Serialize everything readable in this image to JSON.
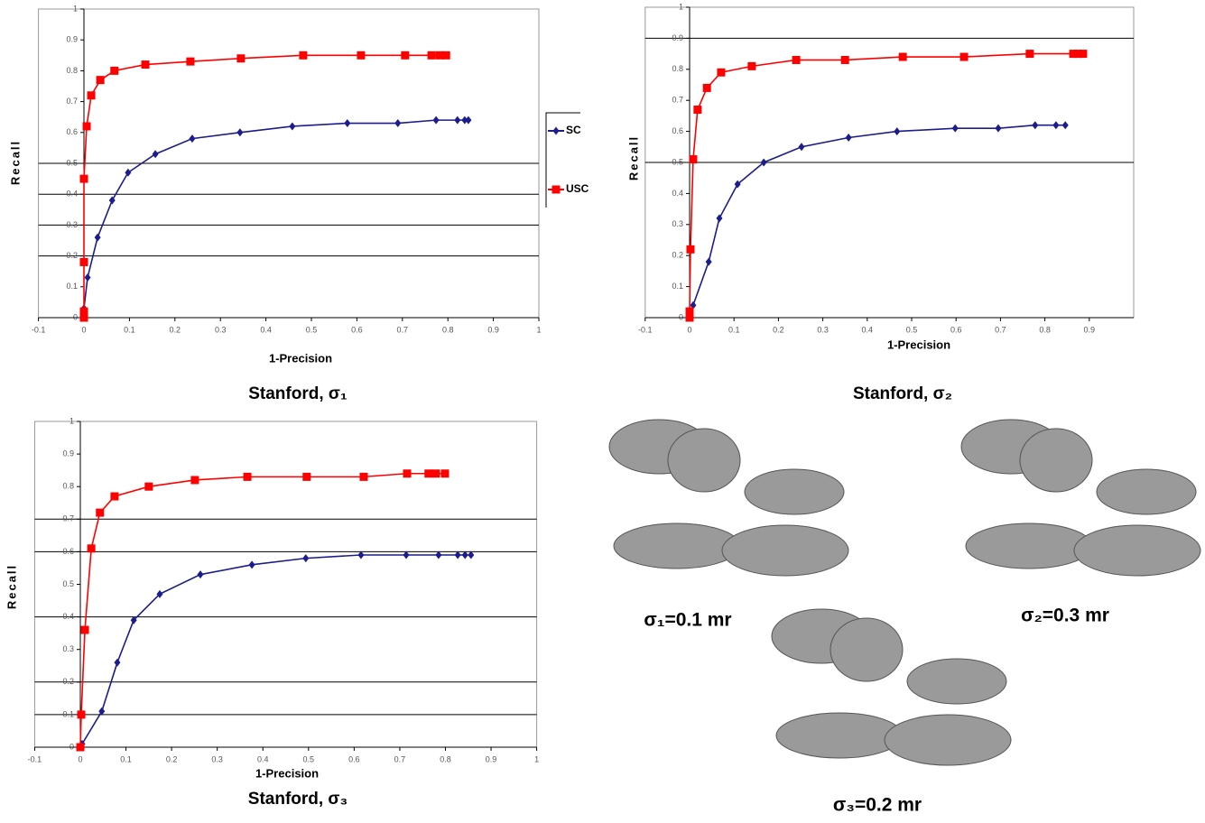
{
  "charts": [
    {
      "chart_data": {
        "type": "line",
        "title": "Stanford, σ₁",
        "x_label": "1-Precision",
        "y_label": "Recall",
        "xlim": [
          -0.1,
          1
        ],
        "ylim": [
          0,
          1
        ],
        "xticks": [
          -0.1,
          0,
          0.1,
          0.2,
          0.3,
          0.4,
          0.5,
          0.6,
          0.7,
          0.8,
          0.9,
          1
        ],
        "yticks": [
          0,
          0.1,
          0.2,
          0.3,
          0.4,
          0.5,
          0.6,
          0.7,
          0.8,
          0.9,
          1
        ],
        "hlines": [
          0.2,
          0.3,
          0.4,
          0.5
        ],
        "legend": "right",
        "series": [
          {
            "name": "SC",
            "color": "#1c1c8c",
            "marker": "diamond",
            "x": [
              0,
              0.008,
              0.03,
              0.062,
              0.097,
              0.157,
              0.238,
              0.343,
              0.458,
              0.579,
              0.69,
              0.774,
              0.821,
              0.837,
              0.845
            ],
            "values": [
              0.03,
              0.13,
              0.26,
              0.38,
              0.47,
              0.53,
              0.58,
              0.6,
              0.62,
              0.63,
              0.63,
              0.64,
              0.64,
              0.64,
              0.64
            ]
          },
          {
            "name": "USC",
            "color": "#ff0000",
            "marker": "square",
            "x": [
              0,
              0,
              0,
              0,
              0.006,
              0.016,
              0.036,
              0.067,
              0.135,
              0.234,
              0.345,
              0.482,
              0.609,
              0.706,
              0.764,
              0.782,
              0.796
            ],
            "values": [
              0,
              0.02,
              0.18,
              0.45,
              0.62,
              0.72,
              0.77,
              0.8,
              0.82,
              0.83,
              0.84,
              0.85,
              0.85,
              0.85,
              0.85,
              0.85,
              0.85
            ]
          }
        ]
      }
    },
    {
      "chart_data": {
        "type": "line",
        "title": "Stanford, σ₂",
        "x_label": "1-Precision",
        "y_label": "Recall",
        "xlim": [
          -0.1,
          1
        ],
        "ylim": [
          0,
          1
        ],
        "xticks": [
          -0.1,
          0,
          0.1,
          0.2,
          0.3,
          0.4,
          0.5,
          0.6,
          0.7,
          0.8,
          0.9
        ],
        "yticks": [
          0,
          0.1,
          0.2,
          0.3,
          0.4,
          0.5,
          0.6,
          0.7,
          0.8,
          0.9,
          1
        ],
        "hlines": [
          0.5,
          0.9
        ],
        "series": [
          {
            "color": "#1c1c8c",
            "marker": "diamond",
            "x": [
              0.008,
              0.043,
              0.067,
              0.108,
              0.167,
              0.252,
              0.358,
              0.467,
              0.598,
              0.695,
              0.778,
              0.825,
              0.846
            ],
            "values": [
              0.04,
              0.18,
              0.32,
              0.43,
              0.5,
              0.55,
              0.58,
              0.6,
              0.61,
              0.61,
              0.62,
              0.62,
              0.62
            ]
          },
          {
            "color": "#ff0000",
            "marker": "square",
            "x": [
              0,
              0,
              0.002,
              0.008,
              0.018,
              0.039,
              0.071,
              0.14,
              0.24,
              0.35,
              0.48,
              0.618,
              0.766,
              0.864,
              0.874,
              0.886
            ],
            "values": [
              0,
              0.02,
              0.22,
              0.51,
              0.67,
              0.74,
              0.79,
              0.81,
              0.83,
              0.83,
              0.84,
              0.84,
              0.85,
              0.85,
              0.85,
              0.85
            ]
          }
        ]
      }
    },
    {
      "chart_data": {
        "type": "line",
        "title": "Stanford, σ₃",
        "x_label": "1-Precision",
        "y_label": "Recall",
        "xlim": [
          -0.1,
          1
        ],
        "ylim": [
          0,
          1
        ],
        "xticks": [
          -0.1,
          0,
          0.1,
          0.2,
          0.3,
          0.4,
          0.5,
          0.6,
          0.7,
          0.8,
          0.9,
          1
        ],
        "yticks": [
          0,
          0.1,
          0.2,
          0.3,
          0.4,
          0.5,
          0.6,
          0.7,
          0.8,
          0.9,
          1
        ],
        "hlines": [
          0.1,
          0.2,
          0.4,
          0.6,
          0.7
        ],
        "series": [
          {
            "color": "#1c1c8c",
            "marker": "diamond",
            "x": [
              0.004,
              0.047,
              0.081,
              0.117,
              0.174,
              0.263,
              0.376,
              0.494,
              0.615,
              0.714,
              0.785,
              0.827,
              0.843,
              0.856
            ],
            "values": [
              0.01,
              0.11,
              0.26,
              0.39,
              0.47,
              0.53,
              0.56,
              0.58,
              0.59,
              0.59,
              0.59,
              0.59,
              0.59,
              0.59
            ]
          },
          {
            "color": "#ff0000",
            "marker": "square",
            "x": [
              0,
              0.002,
              0.01,
              0.024,
              0.043,
              0.075,
              0.15,
              0.251,
              0.366,
              0.496,
              0.621,
              0.716,
              0.763,
              0.779,
              0.799
            ],
            "values": [
              0,
              0.1,
              0.36,
              0.61,
              0.72,
              0.77,
              0.8,
              0.82,
              0.83,
              0.83,
              0.83,
              0.84,
              0.84,
              0.84,
              0.84
            ]
          }
        ]
      }
    }
  ],
  "models": [
    {
      "label": "σ₁=0.1 mr"
    },
    {
      "label": "σ₂=0.3 mr"
    },
    {
      "label": "σ₃=0.2 mr"
    }
  ]
}
